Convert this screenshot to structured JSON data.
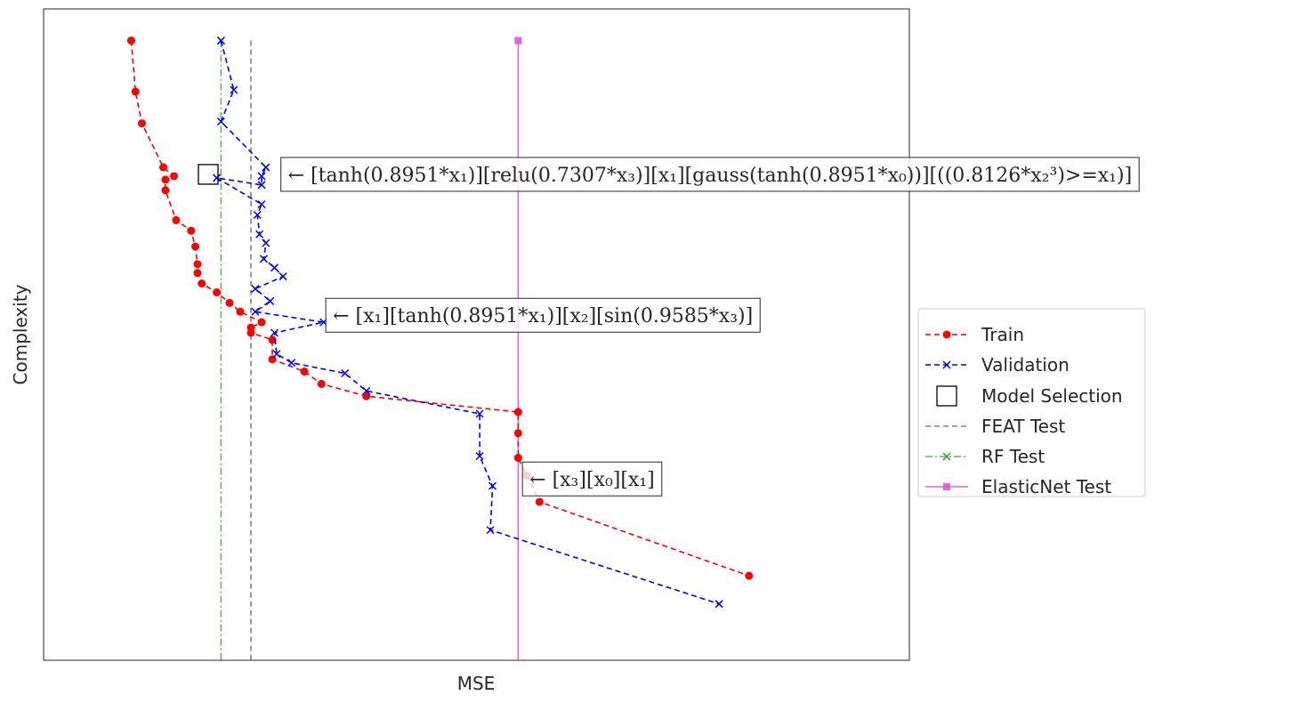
{
  "chart_data": {
    "type": "line",
    "title": "",
    "xlabel": "MSE",
    "ylabel": "Complexity",
    "xticks": "none",
    "yticks": "none",
    "grid": false,
    "legend_position": "center-right, outside axes",
    "xlim": [
      -0.05,
      4.0
    ],
    "ylim": [
      -15,
      355
    ],
    "series": [
      {
        "name": "Train",
        "color": "#ff0000",
        "marker": "circle",
        "linestyle": "dashed",
        "x": [
          0.36,
          0.38,
          0.41,
          0.51,
          0.56,
          0.52,
          0.52,
          0.57,
          0.64,
          0.66,
          0.67,
          0.67,
          0.69,
          0.76,
          0.82,
          0.87,
          0.97,
          0.92,
          0.92,
          1.02,
          1.02,
          1.17,
          1.25,
          1.46,
          2.17,
          2.17,
          2.17,
          2.21,
          2.27,
          3.25
        ],
        "y": [
          337,
          308,
          290,
          265,
          260,
          258,
          252,
          235,
          229,
          220,
          210,
          205,
          199,
          194,
          188,
          183,
          177,
          174,
          171,
          167,
          156,
          149,
          142,
          135,
          126,
          114,
          100,
          90,
          75,
          33
        ]
      },
      {
        "name": "Validation",
        "color": "#0000ff",
        "marker": "x",
        "linestyle": "dashed",
        "x": [
          0.78,
          0.84,
          0.78,
          0.99,
          0.97,
          0.97,
          0.76,
          0.97,
          0.95,
          0.96,
          0.99,
          0.98,
          1.03,
          1.07,
          0.94,
          1.01,
          0.94,
          1.26,
          1.03,
          1.04,
          1.11,
          1.36,
          1.46,
          1.99,
          1.99,
          2.05,
          2.04,
          3.11
        ],
        "y": [
          337,
          309,
          291,
          265,
          260,
          255,
          259,
          244,
          238,
          227,
          222,
          213,
          208,
          203,
          196,
          189,
          183,
          177,
          171,
          159,
          154,
          148,
          138,
          125,
          101,
          84,
          59,
          17
        ]
      },
      {
        "name": "Model Selection",
        "color": "#000000",
        "marker": "open square",
        "points": [
          {
            "x": 0.72,
            "y": 261
          }
        ]
      },
      {
        "name": "FEAT Test",
        "color": "#808080",
        "linestyle": "dashed",
        "x_constant": 0.92
      },
      {
        "name": "RF Test",
        "color": "#2ca02c",
        "linestyle": "dash-dot",
        "marker": "x",
        "x_constant": 0.78
      },
      {
        "name": "ElasticNet Test",
        "color": "#dd55dd",
        "linestyle": "solid",
        "marker": "square",
        "x_constant": 2.17
      }
    ],
    "annotations": [
      {
        "text": "← [tanh(0.8951*x₁)][relu(0.7307*x₃)][x₁][gauss(tanh(0.8951*x₀))][((0.8126*x₂³)>=x₁)]",
        "x": 1.06,
        "y": 261
      },
      {
        "text": "← [x₁][tanh(0.8951*x₁)][x₂][sin(0.9585*x₃)]",
        "x": 1.27,
        "y": 181
      },
      {
        "text": "← [x₃][x₀][x₁]",
        "x": 2.19,
        "y": 88
      }
    ]
  }
}
